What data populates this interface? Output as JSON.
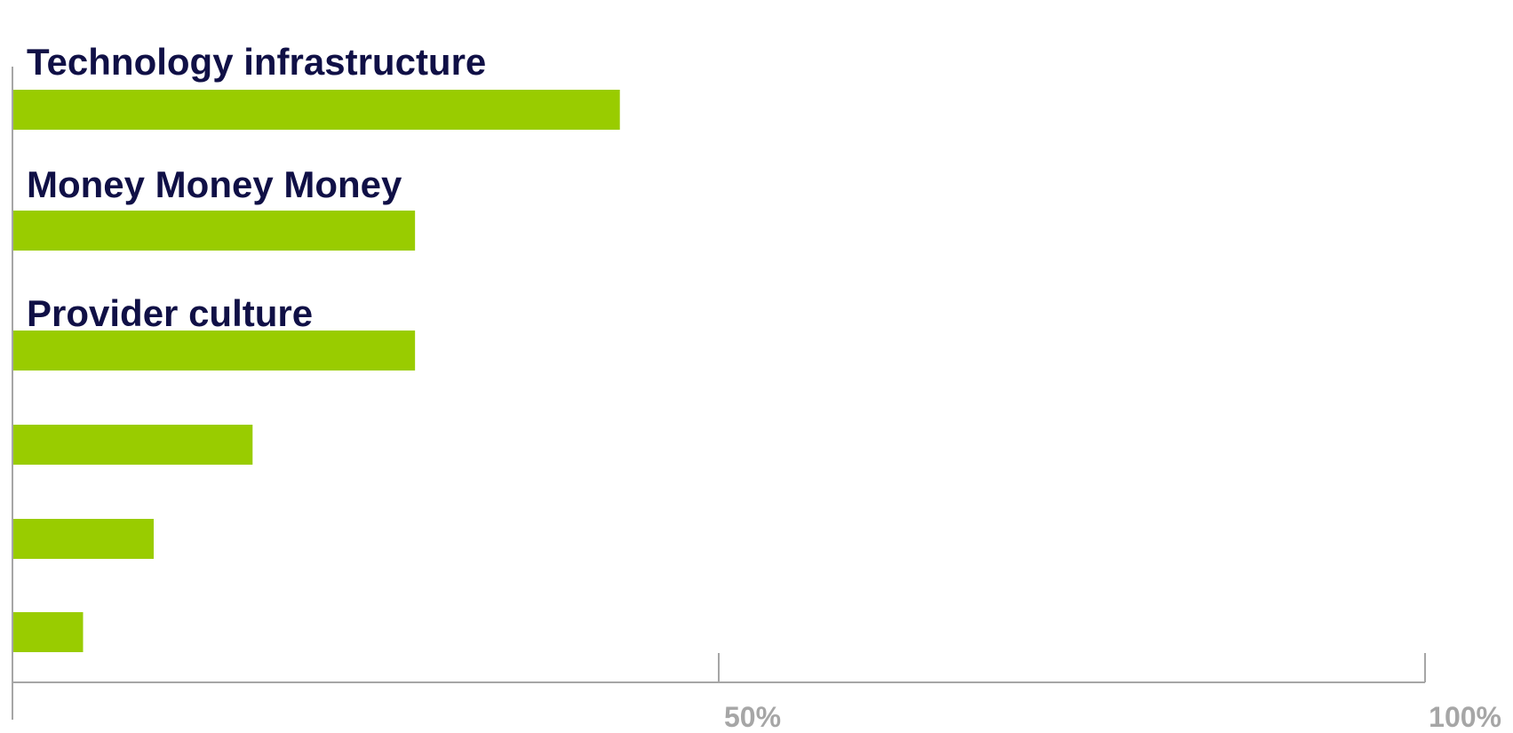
{
  "chart_data": {
    "type": "bar",
    "orientation": "horizontal",
    "categories": [
      "Technology infrastructure",
      "Money Money Money",
      "Provider culture",
      "",
      "",
      ""
    ],
    "values": [
      43,
      28.5,
      28.5,
      17,
      10,
      5
    ],
    "xlim": [
      0,
      100
    ],
    "x_ticks": [
      50,
      100
    ],
    "x_tick_labels": [
      "50%",
      "100%"
    ],
    "grid": false,
    "legend": "none",
    "colors": {
      "bar": "#99cc00",
      "label": "#101046",
      "axis": "#a6a6a6",
      "tick_label": "#a6a6a6"
    }
  }
}
